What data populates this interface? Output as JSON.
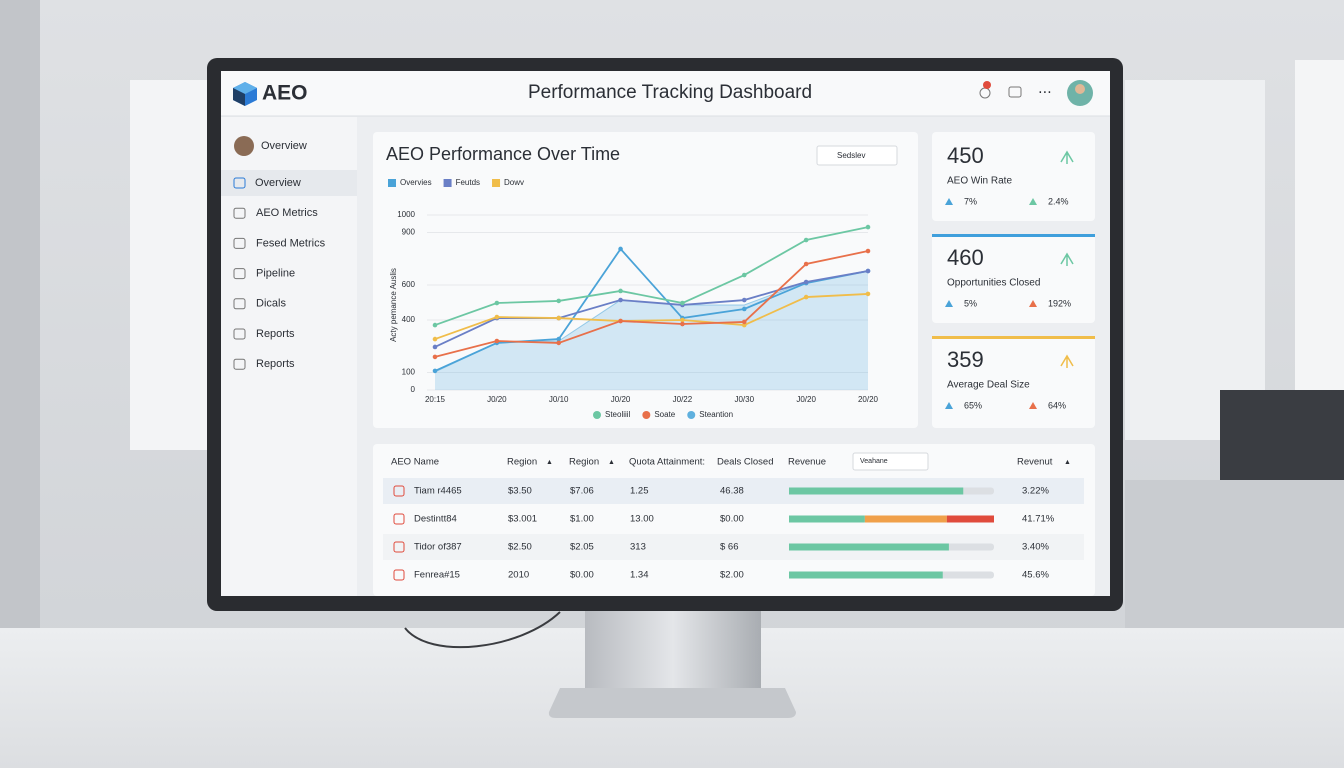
{
  "header": {
    "logo": "AEO",
    "title": "Performance Tracking Dashboard"
  },
  "sidebar": {
    "user": "Overview",
    "items": [
      "Overview",
      "AEO Metrics",
      "Fesed Metrics",
      "Pipeline",
      "Dicals",
      "Reports",
      "Reports"
    ]
  },
  "chart": {
    "type": "line",
    "title": "AEO Performance Over Time",
    "dropdown": "Sedslev",
    "y_label": "Acty pemance Auslis",
    "categories": [
      "20:15",
      "J0/20",
      "J0/10",
      "J0/20",
      "J0/22",
      "J0/30",
      "J0/20",
      "20/20"
    ],
    "ylim": [
      0,
      1000
    ],
    "yticks": [
      0,
      100,
      400,
      600,
      900,
      1000
    ],
    "grid": true,
    "series": [
      {
        "name": "Overvies",
        "color": "#4aa3d8",
        "values": [
          109,
          269,
          291,
          806,
          411,
          463,
          611,
          680
        ]
      },
      {
        "name": "Feutds",
        "color": "#6a7fc6",
        "values": [
          246,
          411,
          411,
          514,
          486,
          514,
          617,
          680
        ]
      },
      {
        "name": "Dowv",
        "color": "#f0bd4a",
        "values": [
          291,
          417,
          411,
          394,
          400,
          371,
          531,
          549
        ]
      },
      {
        "name": "Steoliiil",
        "color": "#6cc7a3",
        "values": [
          371,
          497,
          509,
          566,
          497,
          657,
          857,
          931
        ]
      },
      {
        "name": "Soate",
        "color": "#e8704a",
        "values": [
          189,
          280,
          269,
          394,
          377,
          389,
          720,
          794
        ]
      },
      {
        "name": "Steantion",
        "color": "#5fb0de",
        "area": true,
        "values": [
          103,
          269,
          280,
          514,
          486,
          486,
          617,
          680
        ]
      }
    ]
  },
  "kpis": [
    {
      "value": 450,
      "label": "AEO Win Rate",
      "changes": [
        "7%",
        "2.4%"
      ]
    },
    {
      "value": 460,
      "label": "Opportunities Closed",
      "changes": [
        "5%",
        "192%"
      ]
    },
    {
      "value": 359,
      "label": "Average Deal Size",
      "changes": [
        "65%",
        "64%"
      ]
    }
  ],
  "table": {
    "headers": [
      "AEO Name",
      "Region",
      "Region",
      "Quota Attainment:",
      "Deals Closed",
      "Revenue",
      "Revenut"
    ],
    "dropdown": "Veahane",
    "rows": [
      {
        "cells": [
          "Tiam r4465",
          "$3.50",
          "$7.06",
          "1.25",
          "46.38"
        ],
        "progress": [
          85
        ],
        "change": "3.22%"
      },
      {
        "cells": [
          "Destintt84",
          "$3.001",
          "$1.00",
          "13.00",
          "$0.00"
        ],
        "progress": [
          37,
          40,
          23
        ],
        "change": "41.71%"
      },
      {
        "cells": [
          "Tidor of387",
          "$2.50",
          "$2.05",
          "313",
          "$ 66"
        ],
        "progress": [
          78
        ],
        "change": "3.40%"
      },
      {
        "cells": [
          "Fenrea#15",
          "2010",
          "$0.00",
          "1.34",
          "$2.00"
        ],
        "progress": [
          75
        ],
        "change": "45.6%"
      }
    ]
  }
}
